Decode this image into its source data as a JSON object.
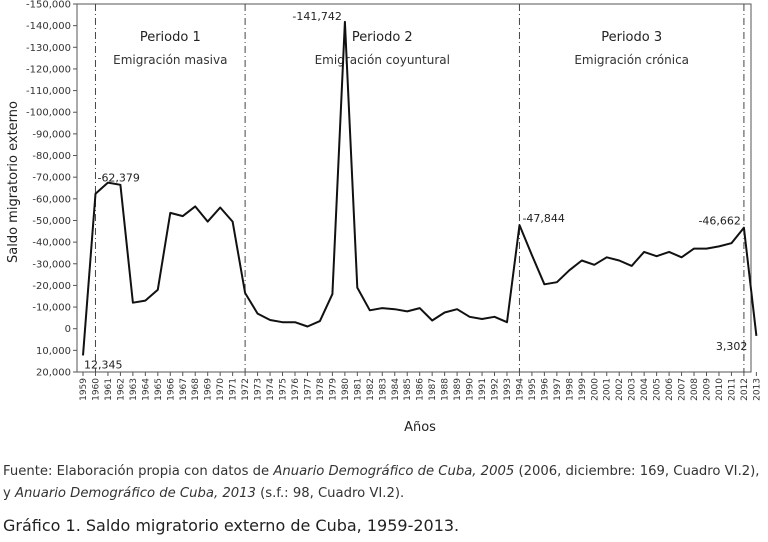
{
  "chart_data": {
    "type": "line",
    "ylabel": "Saldo migratorio externo",
    "xlabel": "Años",
    "ylim": [
      20000,
      -150000
    ],
    "y_ticks": [
      "-150,000",
      "-140,000",
      "-130,000",
      "-120,000",
      "-110,000",
      "-100,000",
      "-90,000",
      "-80,000",
      "-70,000",
      "-60,000",
      "-50,000",
      "-40,000",
      "-30,000",
      "-20,000",
      "-10,000",
      "0",
      "10,000",
      "20,000"
    ],
    "x": [
      1959,
      1960,
      1961,
      1962,
      1963,
      1964,
      1965,
      1966,
      1967,
      1968,
      1969,
      1970,
      1971,
      1972,
      1973,
      1974,
      1975,
      1976,
      1977,
      1978,
      1979,
      1980,
      1981,
      1982,
      1983,
      1984,
      1985,
      1986,
      1987,
      1988,
      1989,
      1990,
      1991,
      1992,
      1993,
      1994,
      1995,
      1996,
      1997,
      1998,
      1999,
      2000,
      2001,
      2002,
      2003,
      2004,
      2005,
      2006,
      2007,
      2008,
      2009,
      2010,
      2011,
      2012,
      2013
    ],
    "values": [
      12345,
      -62379,
      -67500,
      -66500,
      -12000,
      -13000,
      -18000,
      -53500,
      -52000,
      -56500,
      -49500,
      -56000,
      -49500,
      -16500,
      -7000,
      -4000,
      -3000,
      -3000,
      -1000,
      -3500,
      -16000,
      -141742,
      -19000,
      -8500,
      -9500,
      -9000,
      -8000,
      -9500,
      -3800,
      -7500,
      -9000,
      -5500,
      -4500,
      -5500,
      -3000,
      -47844,
      -34000,
      -20500,
      -21500,
      -27000,
      -31500,
      -29500,
      -33000,
      -31500,
      -29000,
      -35500,
      -33500,
      -35500,
      -33000,
      -37000,
      -37000,
      -38000,
      -39500,
      -46662,
      3302
    ],
    "periods": [
      {
        "title": "Periodo 1",
        "subtitle": "Emigración masiva"
      },
      {
        "title": "Periodo 2",
        "subtitle": "Emigración coyuntural"
      },
      {
        "title": "Periodo 3",
        "subtitle": "Emigración crónica"
      }
    ],
    "period_dividers": [
      1960,
      1972,
      1994,
      2012
    ],
    "annotations": [
      {
        "x": 1959,
        "value": 12345,
        "text": "12,345"
      },
      {
        "x": 1960,
        "value": -62379,
        "text": "-62,379"
      },
      {
        "x": 1980,
        "value": -141742,
        "text": "-141,742"
      },
      {
        "x": 1994,
        "value": -47844,
        "text": "-47,844"
      },
      {
        "x": 2012,
        "value": -46662,
        "text": "-46,662"
      },
      {
        "x": 2013,
        "value": 3302,
        "text": "3,302"
      }
    ],
    "grid": false
  },
  "source": {
    "prefix": "Fuente: Elaboración propia con datos de ",
    "title1": "Anuario Demográfico de Cuba, 2005",
    "mid": " (2006, diciembre: 169, Cuadro VI.2), y ",
    "title2": "Anuario Demográfico de Cuba, 2013",
    "suffix": " (s.f.: 98, Cuadro VI.2)."
  },
  "caption": "Gráfico 1. Saldo migratorio externo de Cuba, 1959-2013."
}
